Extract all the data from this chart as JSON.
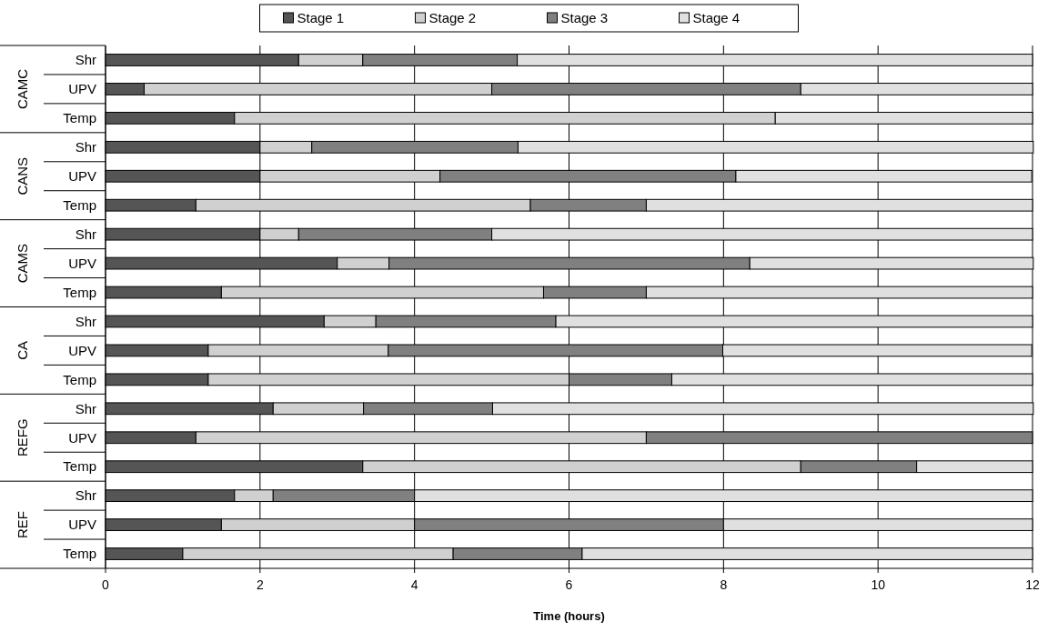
{
  "chart_data": {
    "type": "bar",
    "orientation": "horizontal",
    "stacked": true,
    "categories": [
      "Shr",
      "UPV",
      "Temp",
      "Shr",
      "UPV",
      "Temp",
      "Shr",
      "UPV",
      "Temp",
      "Shr",
      "UPV",
      "Temp",
      "Shr",
      "UPV",
      "Temp",
      "Shr",
      "UPV",
      "Temp"
    ],
    "annotations": [
      "CAMC",
      "CANS",
      "CAMS",
      "CA",
      "REFG",
      "REF"
    ],
    "series": [
      {
        "name": "Stage 1",
        "color": "#555555",
        "values": [
          2.5,
          0.5,
          1.67,
          2.0,
          2.0,
          1.17,
          2.0,
          3.0,
          1.5,
          2.83,
          1.33,
          1.33,
          2.17,
          1.17,
          3.33,
          1.67,
          1.5,
          1.0
        ]
      },
      {
        "name": "Stage 2",
        "color": "#d0d0d0",
        "values": [
          0.83,
          4.5,
          7.0,
          0.67,
          2.33,
          4.33,
          0.5,
          0.67,
          4.17,
          0.67,
          2.33,
          4.67,
          1.17,
          5.83,
          5.67,
          0.5,
          2.5,
          3.5
        ]
      },
      {
        "name": "Stage 3",
        "color": "#808080",
        "values": [
          2.0,
          4.0,
          0,
          2.67,
          3.83,
          1.5,
          2.5,
          4.67,
          1.33,
          2.33,
          4.33,
          1.33,
          1.67,
          5.0,
          1.5,
          1.83,
          4.0,
          1.67
        ]
      },
      {
        "name": "Stage 4",
        "color": "#e0e0e0",
        "values": [
          6.67,
          3.0,
          3.33,
          6.67,
          3.83,
          5.0,
          7.0,
          3.67,
          5.0,
          6.17,
          4.0,
          4.67,
          7.0,
          0,
          1.5,
          8.0,
          4.0,
          5.83
        ]
      }
    ],
    "xlim": [
      0,
      12
    ],
    "xticks": [
      0,
      2,
      4,
      6,
      8,
      10,
      12
    ],
    "xlabel": "Time (hours)",
    "grid": "x",
    "legend": "top"
  }
}
